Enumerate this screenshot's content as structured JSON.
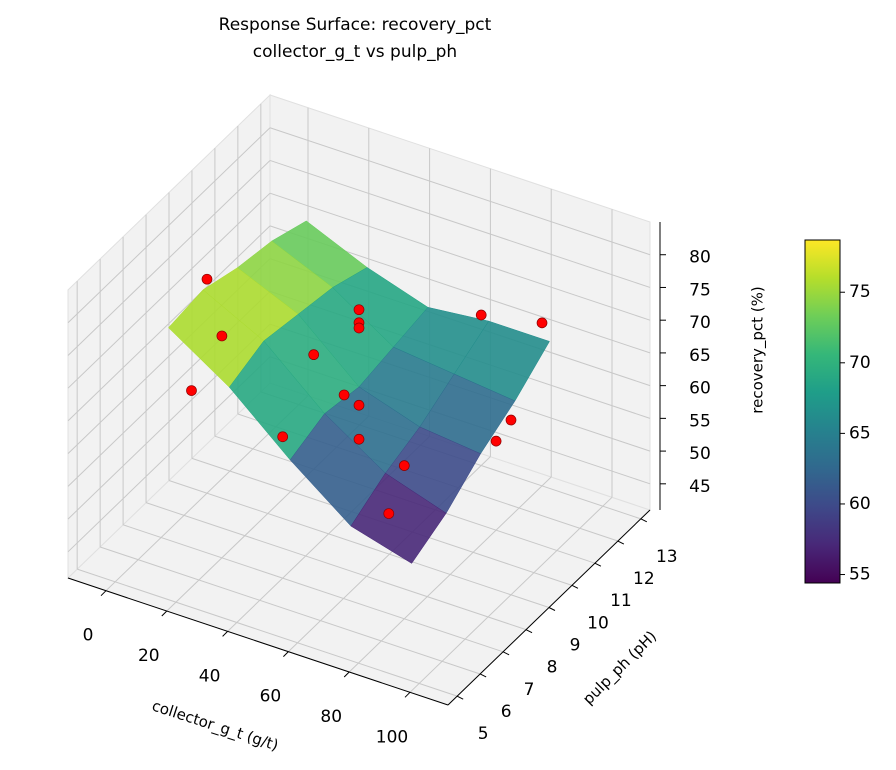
{
  "chart_data": {
    "type": "surface3d",
    "title": "Response Surface: recovery_pct",
    "subtitle": "collector_g_t vs pulp_ph",
    "x_label": "collector_g_t (g/t)",
    "y_label": "pulp_ph (pH)",
    "z_label": "recovery_pct (%)",
    "xlim": [
      -12.5,
      112.5
    ],
    "xticks": [
      0,
      20,
      40,
      60,
      80,
      100
    ],
    "ylim": [
      4.6,
      13.4
    ],
    "yticks": [
      5,
      6,
      7,
      8,
      9,
      10,
      11,
      12,
      13
    ],
    "zlim": [
      41,
      85
    ],
    "zticks": [
      45,
      50,
      55,
      60,
      65,
      70,
      75,
      80
    ],
    "grid": true,
    "surface": {
      "colormap": "viridis",
      "x": [
        10,
        30,
        50,
        70,
        90
      ],
      "y": [
        6,
        7.5,
        9,
        10.5,
        12
      ],
      "z": [
        [
          78,
          78.7,
          77,
          76,
          74
        ],
        [
          72,
          74,
          73,
          72,
          70
        ],
        [
          64,
          66,
          65,
          66,
          67
        ],
        [
          57,
          60,
          62,
          65,
          68
        ],
        [
          54.4,
          57,
          61,
          64,
          68
        ]
      ]
    },
    "points": {
      "color": "#ff0000",
      "x": [
        0,
        20,
        10,
        40,
        20,
        30,
        50,
        50,
        50,
        50,
        50,
        80,
        90,
        80,
        100,
        60,
        80
      ],
      "y": [
        9,
        7,
        7,
        7,
        11,
        11,
        9,
        9,
        9,
        9,
        9,
        7,
        5,
        11,
        9,
        13,
        13
      ],
      "z": [
        73.7,
        74.9,
        65,
        62.6,
        58.5,
        53.9,
        76.8,
        74.8,
        74,
        62.2,
        57,
        64.4,
        65.4,
        54.6,
        67.7,
        64,
        65.9
      ]
    },
    "colorbar": {
      "lim": [
        54.4,
        78.7
      ],
      "ticks": [
        55,
        60,
        65,
        70,
        75
      ]
    }
  }
}
